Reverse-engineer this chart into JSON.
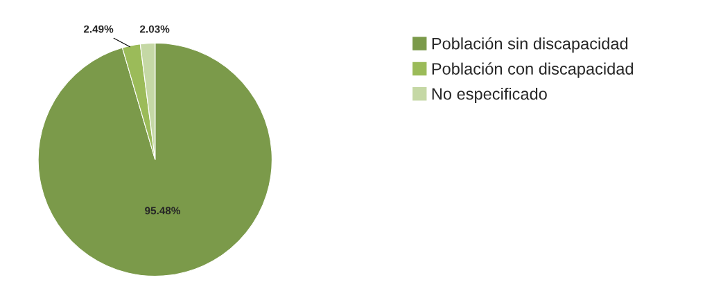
{
  "chart_data": {
    "type": "pie",
    "categories": [
      "Población sin discapacidad",
      "Población con discapacidad",
      "No especificado"
    ],
    "values": [
      95.48,
      2.49,
      2.03
    ],
    "colors": [
      "#7b9a4a",
      "#9bbb59",
      "#c5d8a5"
    ],
    "value_labels": [
      "95.48%",
      "2.49%",
      "2.03%"
    ],
    "legend": "right"
  }
}
